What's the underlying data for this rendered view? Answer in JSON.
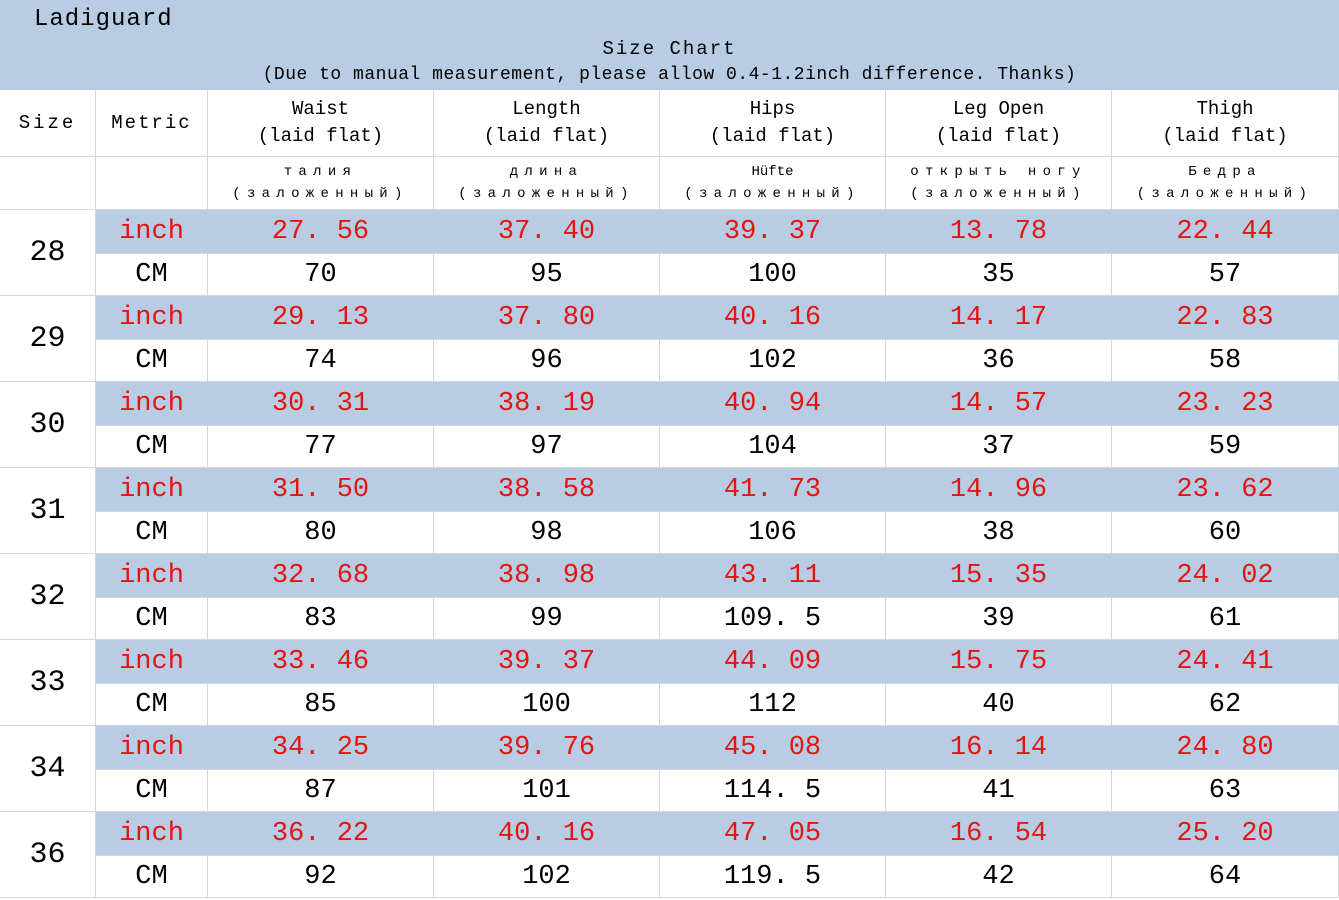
{
  "banner": {
    "brand": "Ladiguard",
    "title": "Size Chart",
    "subtitle": "(Due to manual measurement, please allow 0.4-1.2inch difference. Thanks)"
  },
  "table": {
    "size_header": "Size",
    "metric_header": "Metric",
    "unit_inch_label": "inch",
    "unit_cm_label": "CM",
    "columns": [
      {
        "en": "Waist",
        "en2": "(laid flat)",
        "alt": "талия",
        "alt2": "(заложенный)"
      },
      {
        "en": "Length",
        "en2": "(laid flat)",
        "alt": "длина",
        "alt2": "(заложенный)"
      },
      {
        "en": "Hips",
        "en2": "(laid flat)",
        "alt": "Hüfte",
        "alt2": "(заложенный)"
      },
      {
        "en": "Leg Open",
        "en2": "(laid flat)",
        "alt": "открыть ногу",
        "alt2": "(заложенный)"
      },
      {
        "en": "Thigh",
        "en2": "(laid flat)",
        "alt": "Бедра",
        "alt2": "(заложенный)"
      }
    ],
    "rows": [
      {
        "size": "28",
        "inch": [
          "27.56",
          "37.40",
          "39.37",
          "13.78",
          "22.44"
        ],
        "cm": [
          "70",
          "95",
          "100",
          "35",
          "57"
        ]
      },
      {
        "size": "29",
        "inch": [
          "29.13",
          "37.80",
          "40.16",
          "14.17",
          "22.83"
        ],
        "cm": [
          "74",
          "96",
          "102",
          "36",
          "58"
        ]
      },
      {
        "size": "30",
        "inch": [
          "30.31",
          "38.19",
          "40.94",
          "14.57",
          "23.23"
        ],
        "cm": [
          "77",
          "97",
          "104",
          "37",
          "59"
        ]
      },
      {
        "size": "31",
        "inch": [
          "31.50",
          "38.58",
          "41.73",
          "14.96",
          "23.62"
        ],
        "cm": [
          "80",
          "98",
          "106",
          "38",
          "60"
        ]
      },
      {
        "size": "32",
        "inch": [
          "32.68",
          "38.98",
          "43.11",
          "15.35",
          "24.02"
        ],
        "cm": [
          "83",
          "99",
          "109.5",
          "39",
          "61"
        ]
      },
      {
        "size": "33",
        "inch": [
          "33.46",
          "39.37",
          "44.09",
          "15.75",
          "24.41"
        ],
        "cm": [
          "85",
          "100",
          "112",
          "40",
          "62"
        ]
      },
      {
        "size": "34",
        "inch": [
          "34.25",
          "39.76",
          "45.08",
          "16.14",
          "24.80"
        ],
        "cm": [
          "87",
          "101",
          "114.5",
          "41",
          "63"
        ]
      },
      {
        "size": "36",
        "inch": [
          "36.22",
          "40.16",
          "47.05",
          "16.54",
          "25.20"
        ],
        "cm": [
          "92",
          "102",
          "119.5",
          "42",
          "64"
        ]
      }
    ]
  },
  "colors": {
    "accent_blue": "#b8cce4",
    "red": "#e6140e",
    "text": "#000000",
    "border": "#d3d7dd"
  }
}
